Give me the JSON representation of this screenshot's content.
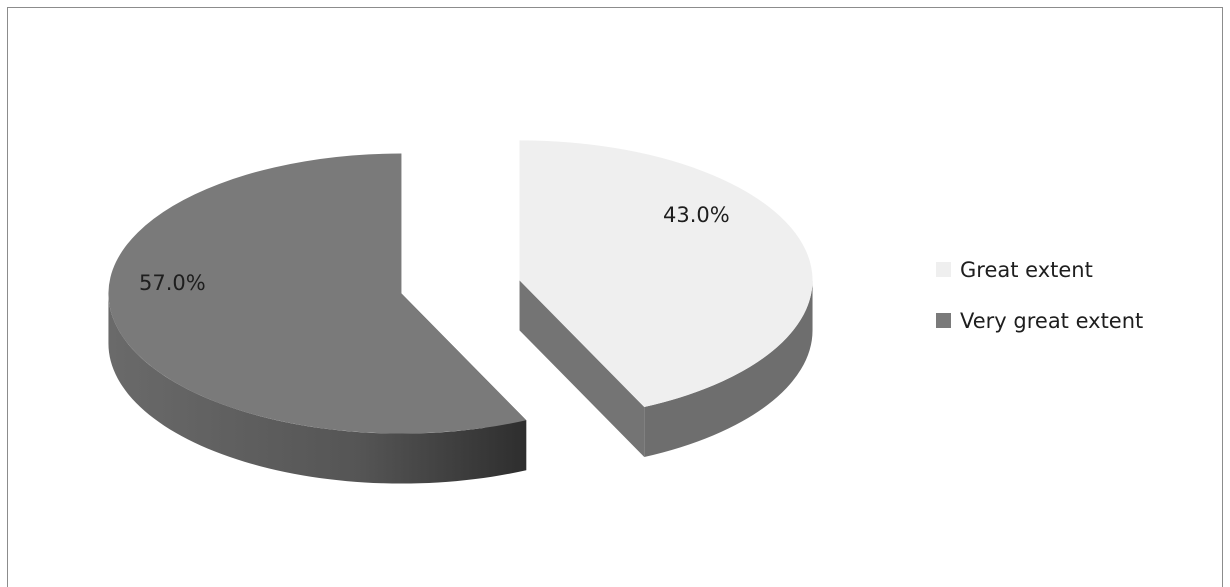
{
  "chart_data": {
    "type": "pie",
    "style": "3d-exploded",
    "categories": [
      "Great extent",
      "Very great extent"
    ],
    "values": [
      43.0,
      57.0
    ],
    "value_labels": [
      "43.0%",
      "57.0%"
    ],
    "colors": [
      "#efefef",
      "#7a7a7a"
    ],
    "title": "",
    "legend": {
      "position": "right",
      "entries": [
        "Great extent",
        "Very great extent"
      ]
    }
  }
}
